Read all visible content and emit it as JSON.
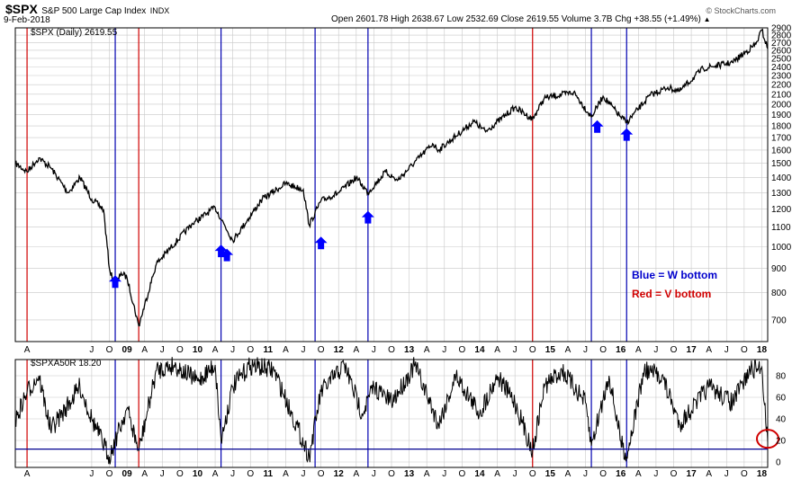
{
  "header": {
    "symbol": "$SPX",
    "name": "S&P 500 Large Cap Index",
    "exchange": "INDX",
    "date": "9-Feb-2018",
    "quote": "Open 2601.78  High 2638.67  Low 2532.69  Close 2619.55  Volume 3.7B  Chg +38.55 (+1.49%)",
    "quote_arrow": "▲",
    "watermark": "© StockCharts.com"
  },
  "chart_data": [
    {
      "type": "line",
      "legend": "$SPX (Daily) 2619.55",
      "ylim": [
        630,
        2900
      ],
      "yticks": [
        700,
        800,
        900,
        1000,
        1100,
        1200,
        1300,
        1400,
        1500,
        1600,
        1700,
        1800,
        1900,
        2000,
        2100,
        2200,
        2300,
        2400,
        2500,
        2600,
        2700,
        2800,
        2900
      ],
      "x_range": [
        "2007-06",
        "2018-02"
      ],
      "series": [
        {
          "color": "#000000",
          "x": [
            "2007-06",
            "2007-08",
            "2007-10",
            "2007-12",
            "2008-03",
            "2008-05",
            "2008-07",
            "2008-09",
            "2008-10",
            "2008-11",
            "2008-12",
            "2009-01",
            "2009-03",
            "2009-06",
            "2009-12",
            "2010-04",
            "2010-07",
            "2010-12",
            "2011-04",
            "2011-07",
            "2011-08",
            "2011-10",
            "2012-01",
            "2012-04",
            "2012-06",
            "2012-09",
            "2012-11",
            "2013-05",
            "2013-06",
            "2013-12",
            "2014-02",
            "2014-07",
            "2014-10",
            "2014-12",
            "2015-05",
            "2015-08",
            "2015-10",
            "2016-01",
            "2016-02",
            "2016-06",
            "2016-09",
            "2016-11",
            "2017-03",
            "2017-08",
            "2017-12",
            "2018-01",
            "2018-02"
          ],
          "values": [
            1500,
            1440,
            1540,
            1470,
            1300,
            1400,
            1260,
            1200,
            900,
            820,
            880,
            860,
            680,
            920,
            1115,
            1210,
            1030,
            1260,
            1360,
            1320,
            1110,
            1250,
            1300,
            1400,
            1300,
            1440,
            1380,
            1650,
            1600,
            1840,
            1750,
            1970,
            1860,
            2060,
            2120,
            1880,
            2080,
            1880,
            1830,
            2090,
            2170,
            2130,
            2380,
            2450,
            2680,
            2870,
            2619.55
          ]
        }
      ],
      "markers": [
        {
          "x": "2008-11",
          "value": 870
        },
        {
          "x": "2010-05",
          "value": 1010
        },
        {
          "x": "2010-06",
          "value": 990
        },
        {
          "x": "2011-10",
          "value": 1050
        },
        {
          "x": "2012-06",
          "value": 1190
        },
        {
          "x": "2015-09",
          "value": 1850
        },
        {
          "x": "2016-02",
          "value": 1780
        }
      ],
      "annotations": [
        "Blue = W bottom",
        "Red = V bottom"
      ]
    },
    {
      "type": "line",
      "legend": "$SPXA50R 18.20",
      "ylim": [
        -5,
        95
      ],
      "yticks": [
        0,
        20,
        40,
        60,
        80
      ],
      "hline": 12,
      "series": [
        {
          "color": "#000000",
          "x": [
            "2007-06",
            "2007-08",
            "2007-10",
            "2007-12",
            "2008-02",
            "2008-05",
            "2008-07",
            "2008-10",
            "2008-11",
            "2009-01",
            "2009-03",
            "2009-06",
            "2009-09",
            "2010-01",
            "2010-04",
            "2010-05",
            "2010-07",
            "2010-10",
            "2011-02",
            "2011-05",
            "2011-08",
            "2011-10",
            "2012-02",
            "2012-05",
            "2012-07",
            "2012-10",
            "2013-02",
            "2013-06",
            "2013-09",
            "2014-01",
            "2014-04",
            "2014-07",
            "2014-10",
            "2014-12",
            "2015-03",
            "2015-07",
            "2015-08",
            "2015-11",
            "2016-01",
            "2016-02",
            "2016-05",
            "2016-08",
            "2016-11",
            "2017-04",
            "2017-08",
            "2017-11",
            "2018-01",
            "2018-02"
          ],
          "values": [
            38,
            65,
            80,
            30,
            45,
            70,
            40,
            5,
            20,
            50,
            10,
            85,
            90,
            75,
            90,
            20,
            70,
            90,
            85,
            45,
            5,
            65,
            90,
            45,
            70,
            55,
            90,
            35,
            80,
            45,
            80,
            55,
            10,
            70,
            85,
            55,
            15,
            80,
            20,
            5,
            85,
            80,
            35,
            70,
            55,
            85,
            88,
            18.2
          ]
        }
      ],
      "highlight": {
        "x": "2018-02",
        "value": 18.2
      }
    }
  ],
  "x_axis": {
    "month_labels": [
      {
        "x": "2007-08",
        "label": "A"
      },
      {
        "x": "2008-07",
        "label": "J"
      },
      {
        "x": "2008-10",
        "label": "O"
      },
      {
        "x": "2009-01",
        "label": "09"
      },
      {
        "x": "2009-04",
        "label": "A"
      },
      {
        "x": "2009-07",
        "label": "J"
      },
      {
        "x": "2009-10",
        "label": "O"
      },
      {
        "x": "2010-01",
        "label": "10"
      },
      {
        "x": "2010-04",
        "label": "A"
      },
      {
        "x": "2010-07",
        "label": "J"
      },
      {
        "x": "2010-10",
        "label": "O"
      },
      {
        "x": "2011-01",
        "label": "11"
      },
      {
        "x": "2011-04",
        "label": "A"
      },
      {
        "x": "2011-07",
        "label": "J"
      },
      {
        "x": "2011-10",
        "label": "O"
      },
      {
        "x": "2012-01",
        "label": "12"
      },
      {
        "x": "2012-04",
        "label": "A"
      },
      {
        "x": "2012-07",
        "label": "J"
      },
      {
        "x": "2012-10",
        "label": "O"
      },
      {
        "x": "2013-01",
        "label": "13"
      },
      {
        "x": "2013-04",
        "label": "A"
      },
      {
        "x": "2013-07",
        "label": "J"
      },
      {
        "x": "2013-10",
        "label": "O"
      },
      {
        "x": "2014-01",
        "label": "14"
      },
      {
        "x": "2014-04",
        "label": "A"
      },
      {
        "x": "2014-07",
        "label": "J"
      },
      {
        "x": "2014-10",
        "label": "O"
      },
      {
        "x": "2015-01",
        "label": "15"
      },
      {
        "x": "2015-04",
        "label": "A"
      },
      {
        "x": "2015-07",
        "label": "J"
      },
      {
        "x": "2015-10",
        "label": "O"
      },
      {
        "x": "2016-01",
        "label": "16"
      },
      {
        "x": "2016-04",
        "label": "A"
      },
      {
        "x": "2016-07",
        "label": "J"
      },
      {
        "x": "2016-10",
        "label": "O"
      },
      {
        "x": "2017-01",
        "label": "17"
      },
      {
        "x": "2017-04",
        "label": "A"
      },
      {
        "x": "2017-07",
        "label": "J"
      },
      {
        "x": "2017-10",
        "label": "O"
      },
      {
        "x": "2018-01",
        "label": "18"
      }
    ],
    "vlines": [
      {
        "x": "2007-08",
        "color": "#d00000"
      },
      {
        "x": "2008-11",
        "color": "#0000b0"
      },
      {
        "x": "2009-03",
        "color": "#d00000"
      },
      {
        "x": "2010-05",
        "color": "#0000b0"
      },
      {
        "x": "2011-09",
        "color": "#0000b0"
      },
      {
        "x": "2012-06",
        "color": "#0000b0"
      },
      {
        "x": "2014-10",
        "color": "#d00000"
      },
      {
        "x": "2015-08",
        "color": "#0000b0"
      },
      {
        "x": "2016-02",
        "color": "#0000b0"
      }
    ]
  },
  "colors": {
    "blue": "#0000ff",
    "red": "#d00000",
    "hline": "#000090",
    "grid": "#c8c8c8"
  }
}
